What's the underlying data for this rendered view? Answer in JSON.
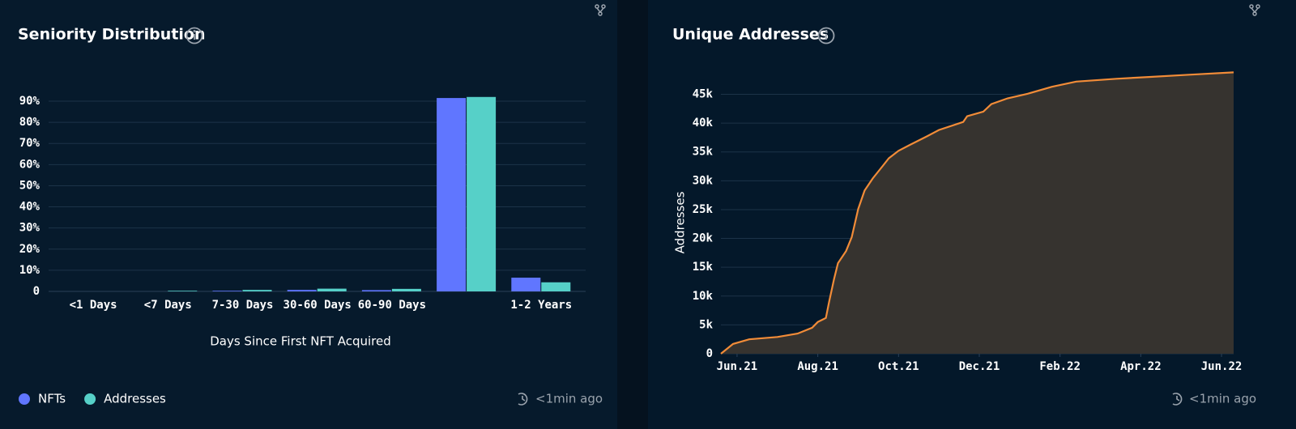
{
  "chart_data": [
    {
      "type": "bar",
      "title": "Seniority Distribution",
      "xlabel": "Days Since First NFT Acquired",
      "updated": "<1min ago",
      "categories": [
        "<1 Days",
        "<7 Days",
        "7-30 Days",
        "30-60 Days",
        "60-90 Days",
        null,
        "1-2 Years"
      ],
      "series": [
        {
          "name": "NFTs",
          "color": "#6076ff",
          "values": [
            0,
            0,
            0.3,
            0.7,
            0.6,
            91.5,
            6.5
          ]
        },
        {
          "name": "Addresses",
          "color": "#56d0c8",
          "values": [
            0,
            0.3,
            0.7,
            1.3,
            1.2,
            92,
            4.3
          ]
        }
      ],
      "ylim": [
        0,
        100
      ],
      "yticks": [
        0,
        {
          "value": 10,
          "label": "10%"
        },
        {
          "value": 20,
          "label": "20%"
        },
        {
          "value": 30,
          "label": "30%"
        },
        {
          "value": 40,
          "label": "40%"
        },
        {
          "value": 50,
          "label": "50%"
        },
        {
          "value": 60,
          "label": "60%"
        },
        {
          "value": 70,
          "label": "70%"
        },
        {
          "value": 80,
          "label": "80%"
        },
        {
          "value": 90,
          "label": "90%"
        }
      ],
      "grid": true,
      "legend": "bottom-left"
    },
    {
      "type": "area",
      "title": "Unique Addresses",
      "ylabel": "Addresses",
      "updated": "<1min ago",
      "color": "#f28c38",
      "fill": "#36332f",
      "x": [
        -0.4,
        -0.1,
        0.3,
        1.0,
        1.5,
        1.86,
        2.0,
        2.2,
        2.28,
        2.4,
        2.5,
        2.7,
        2.84,
        3.0,
        3.16,
        3.36,
        3.6,
        3.76,
        4.0,
        4.3,
        4.7,
        5.0,
        5.6,
        5.7,
        6.1,
        6.3,
        6.7,
        7.2,
        7.8,
        8.4,
        9.4,
        10.2,
        11.2,
        12.3
      ],
      "values": [
        0,
        1700,
        2500,
        2900,
        3500,
        4500,
        5500,
        6200,
        9000,
        12900,
        15700,
        17800,
        20200,
        25100,
        28300,
        30400,
        32500,
        33900,
        35200,
        36300,
        37700,
        38800,
        40200,
        41200,
        42000,
        43300,
        44300,
        45100,
        46300,
        47200,
        47700,
        48000,
        48400,
        48800
      ],
      "xlim": [
        -0.4,
        12.3
      ],
      "xticks": [
        {
          "value": 0,
          "label": "Jun.21"
        },
        {
          "value": 2,
          "label": "Aug.21"
        },
        {
          "value": 4,
          "label": "Oct.21"
        },
        {
          "value": 6,
          "label": "Dec.21"
        },
        {
          "value": 8,
          "label": "Feb.22"
        },
        {
          "value": 10,
          "label": "Apr.22"
        },
        {
          "value": 12,
          "label": "Jun.22"
        }
      ],
      "ylim": [
        0,
        49000
      ],
      "yticks": [
        0,
        {
          "value": 5000,
          "label": "5k"
        },
        {
          "value": 10000,
          "label": "10k"
        },
        {
          "value": 15000,
          "label": "15k"
        },
        {
          "value": 20000,
          "label": "20k"
        },
        {
          "value": 25000,
          "label": "25k"
        },
        {
          "value": 30000,
          "label": "30k"
        },
        {
          "value": 35000,
          "label": "35k"
        },
        {
          "value": 40000,
          "label": "40k"
        },
        {
          "value": 45000,
          "label": "45k"
        }
      ],
      "grid": true
    }
  ]
}
